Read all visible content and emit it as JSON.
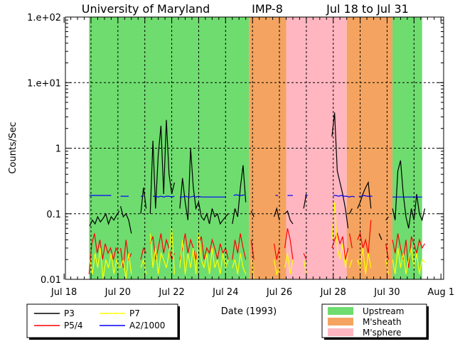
{
  "chart_data": {
    "type": "line",
    "title_parts": [
      "University of Maryland",
      "IMP-8",
      "Jul 18 to Jul 31"
    ],
    "xlabel": "Date (1993)",
    "ylabel": "Counts/Sec",
    "x_units": "days since Jul 18 00:00",
    "xlim": [
      0.05,
      14.1
    ],
    "ylim": [
      0.01,
      100
    ],
    "yscale": "log",
    "y_tick_values": [
      100,
      10,
      1,
      0.1,
      0.01
    ],
    "y_tick_labels": [
      "1.e+02",
      "1.e+01",
      "1",
      "0.1",
      "0.01"
    ],
    "x_tick_days": [
      0,
      2,
      4,
      6,
      8,
      10,
      12,
      14
    ],
    "x_tick_labels": [
      "Jul 18",
      "Jul 20",
      "Jul 22",
      "Jul 24",
      "Jul 26",
      "Jul 28",
      "Jul 30",
      "Aug 1"
    ],
    "grid": {
      "vertical_days": [
        1,
        2,
        3,
        4,
        5,
        6,
        7,
        8,
        9,
        10,
        11,
        12,
        13
      ],
      "horizontal_values": [
        10,
        1,
        0.1
      ],
      "style": "dashed"
    },
    "regions": [
      {
        "name": "Upstream",
        "start": 0.93,
        "end": 6.87
      },
      {
        "name": "M'sheath",
        "start": 6.87,
        "end": 8.25
      },
      {
        "name": "M'sphere",
        "start": 8.25,
        "end": 10.5
      },
      {
        "name": "M'sheath",
        "start": 10.5,
        "end": 12.2
      },
      {
        "name": "Upstream",
        "start": 12.2,
        "end": 13.3
      }
    ],
    "region_legend": [
      {
        "name": "Upstream",
        "color": "#6fdc6f"
      },
      {
        "name": "M'sheath",
        "color": "#f4a460"
      },
      {
        "name": "M'sphere",
        "color": "#ffb6c1"
      }
    ],
    "legend_placement": "bottom-left",
    "series": [
      {
        "name": "P3",
        "color": "#000000",
        "step": 0.1,
        "segments": [
          {
            "start": 0.95,
            "values": [
              0.065,
              0.08,
              0.07,
              0.09,
              0.075,
              0.085,
              0.1,
              0.07,
              0.09,
              0.08,
              0.095,
              0.11
            ]
          },
          {
            "start": 2.1,
            "values": [
              0.13,
              0.09,
              0.1,
              0.08,
              0.05
            ]
          },
          {
            "start": 2.85,
            "values": [
              0.1,
              0.25,
              0.12
            ]
          },
          {
            "start": 3.2,
            "values": [
              0.1,
              1.3,
              0.12,
              0.8,
              2.2,
              0.2,
              2.7,
              0.4,
              0.2,
              0.3
            ]
          },
          {
            "start": 4.3,
            "values": [
              0.12,
              0.35,
              0.15,
              0.08,
              1.0,
              0.25,
              0.12,
              0.15,
              0.09,
              0.08,
              0.1,
              0.07,
              0.12,
              0.09,
              0.1,
              0.07,
              0.08,
              0.09,
              0.1
            ]
          },
          {
            "start": 6.25,
            "values": [
              0.07,
              0.12,
              0.09,
              0.25,
              0.55,
              0.15
            ]
          },
          {
            "start": 6.95,
            "values": [
              0.11,
              0.09
            ]
          },
          {
            "start": 7.8,
            "values": [
              0.09,
              0.12,
              0.08
            ]
          },
          {
            "start": 8.2,
            "values": [
              0.1,
              0.11,
              0.08,
              0.07
            ]
          },
          {
            "start": 8.9,
            "values": [
              0.12,
              0.2
            ]
          },
          {
            "start": 9.95,
            "values": [
              1.5,
              3.5,
              0.45,
              0.3,
              0.2,
              0.12,
              0.06
            ]
          },
          {
            "start": 10.6,
            "values": [
              0.1,
              0.12
            ]
          },
          {
            "start": 10.9,
            "values": [
              0.12,
              0.15,
              0.2,
              0.25,
              0.3,
              0.12
            ]
          },
          {
            "start": 11.7,
            "values": [
              0.05,
              0.04
            ]
          },
          {
            "start": 11.95,
            "values": [
              0.08,
              0.09
            ]
          },
          {
            "start": 12.2,
            "values": [
              0.12,
              0.08,
              0.45,
              0.65,
              0.2,
              0.09,
              0.06,
              0.12,
              0.08,
              0.2,
              0.1,
              0.08,
              0.12
            ]
          }
        ]
      },
      {
        "name": "P5/4",
        "color": "#ff0000",
        "step": 0.1,
        "segments": [
          {
            "start": 0.93,
            "values": [
              0.012,
              0.035,
              0.05,
              0.025,
              0.04,
              0.02,
              0.035,
              0.025,
              0.03,
              0.02,
              0.03,
              0.025
            ]
          },
          {
            "start": 2.1,
            "values": [
              0.03,
              0.015,
              0.04,
              0.02,
              0.025
            ]
          },
          {
            "start": 2.85,
            "values": [
              0.02,
              0.03,
              0.025
            ]
          },
          {
            "start": 3.2,
            "values": [
              0.035,
              0.045,
              0.02,
              0.03,
              0.05,
              0.025,
              0.04,
              0.03,
              0.02,
              0.025
            ]
          },
          {
            "start": 4.3,
            "values": [
              0.02,
              0.03,
              0.05,
              0.025,
              0.04,
              0.03,
              0.02,
              0.035,
              0.045,
              0.02,
              0.03,
              0.025,
              0.04,
              0.03,
              0.02,
              0.035,
              0.025,
              0.03,
              0.02
            ]
          },
          {
            "start": 6.25,
            "values": [
              0.02,
              0.04,
              0.025,
              0.05,
              0.03,
              0.02
            ]
          },
          {
            "start": 6.95,
            "values": [
              0.04,
              0.02
            ]
          },
          {
            "start": 7.8,
            "values": [
              0.035,
              0.02,
              0.03
            ]
          },
          {
            "start": 8.2,
            "values": [
              0.03,
              0.06,
              0.04,
              0.02
            ]
          },
          {
            "start": 8.9,
            "values": [
              0.025,
              0.02
            ]
          },
          {
            "start": 9.95,
            "values": [
              0.03,
              0.04,
              0.05,
              0.035,
              0.045,
              0.02,
              0.03
            ]
          },
          {
            "start": 10.6,
            "values": [
              0.05,
              0.03
            ]
          },
          {
            "start": 10.9,
            "values": [
              0.04,
              0.05,
              0.03,
              0.04,
              0.025,
              0.08
            ]
          },
          {
            "start": 11.95,
            "values": [
              0.035,
              0.02
            ]
          },
          {
            "start": 12.2,
            "values": [
              0.04,
              0.025,
              0.05,
              0.03,
              0.02,
              0.04,
              0.015,
              0.045,
              0.035,
              0.025,
              0.04,
              0.03,
              0.035
            ]
          }
        ]
      },
      {
        "name": "P7",
        "color": "#ffff00",
        "step": 0.1,
        "segments": [
          {
            "start": 0.95,
            "values": [
              0.02,
              0.012,
              0.025,
              0.015,
              0.03,
              0.01,
              0.02,
              0.015,
              0.025,
              0.012,
              0.02,
              0.015
            ]
          },
          {
            "start": 2.1,
            "values": [
              0.015,
              0.02,
              0.01,
              0.025,
              0.012
            ]
          },
          {
            "start": 2.85,
            "values": [
              0.015,
              0.02,
              0.012
            ]
          },
          {
            "start": 3.2,
            "values": [
              0.05,
              0.015,
              0.03,
              0.012,
              0.025,
              0.02,
              0.015,
              0.025,
              0.06,
              0.012
            ]
          },
          {
            "start": 4.3,
            "values": [
              0.015,
              0.04,
              0.012,
              0.025,
              0.015,
              0.03,
              0.012,
              0.05,
              0.02,
              0.015,
              0.025,
              0.012,
              0.03,
              0.015,
              0.02,
              0.012,
              0.025,
              0.015,
              0.02
            ]
          },
          {
            "start": 6.25,
            "values": [
              0.015,
              0.02,
              0.012,
              0.025,
              0.015,
              0.012
            ]
          },
          {
            "start": 6.95,
            "values": [
              0.02,
              0.01
            ]
          },
          {
            "start": 7.8,
            "values": [
              0.02,
              0.012,
              0.015
            ]
          },
          {
            "start": 8.2,
            "values": [
              0.015,
              0.025,
              0.012,
              0.02
            ]
          },
          {
            "start": 8.9,
            "values": [
              0.02,
              0.012
            ]
          },
          {
            "start": 9.95,
            "values": [
              0.04,
              0.15,
              0.03,
              0.02,
              0.035,
              0.015,
              0.025
            ]
          },
          {
            "start": 10.6,
            "values": [
              0.015,
              0.02
            ]
          },
          {
            "start": 10.9,
            "values": [
              0.02,
              0.015,
              0.03,
              0.012,
              0.025,
              0.015
            ]
          },
          {
            "start": 11.95,
            "values": [
              0.02,
              0.012
            ]
          },
          {
            "start": 12.2,
            "values": [
              0.02,
              0.012,
              0.03,
              0.015,
              0.025,
              0.012,
              0.02,
              0.03,
              0.015,
              0.025,
              0.012,
              0.02,
              0.018
            ]
          }
        ]
      },
      {
        "name": "A2/1000",
        "color": "#0000ff",
        "step": 0.1,
        "segments": [
          {
            "start": 0.95,
            "values": [
              0.19,
              0.19,
              0.19,
              0.19,
              0.19,
              0.19,
              0.19,
              0.19,
              0.19
            ]
          },
          {
            "start": 2.1,
            "values": [
              0.185,
              0.185,
              0.185,
              0.185
            ]
          },
          {
            "start": 2.85,
            "values": [
              0.185,
              0.185
            ]
          },
          {
            "start": 3.3,
            "values": [
              0.185,
              0.185,
              0.18,
              0.185,
              0.18,
              0.185,
              0.185,
              0.18,
              0.185
            ]
          },
          {
            "start": 4.3,
            "values": [
              0.18,
              0.18,
              0.185,
              0.18,
              0.18,
              0.185,
              0.18,
              0.185,
              0.18,
              0.18,
              0.18,
              0.18,
              0.18,
              0.18,
              0.18,
              0.18,
              0.18,
              0.18
            ]
          },
          {
            "start": 6.3,
            "values": [
              0.19,
              0.195,
              0.19,
              0.19,
              0.195
            ]
          },
          {
            "start": 7.85,
            "values": [
              0.19,
              0.19
            ]
          },
          {
            "start": 8.3,
            "values": [
              0.19,
              0.19,
              0.19
            ]
          },
          {
            "start": 8.95,
            "values": [
              0.19,
              0.19
            ]
          },
          {
            "start": 10.0,
            "values": [
              0.19,
              0.19,
              0.185,
              0.19,
              0.185,
              0.185,
              0.18,
              0.185,
              0.18
            ]
          },
          {
            "start": 10.95,
            "values": [
              0.185,
              0.185,
              0.19,
              0.185,
              0.185,
              0.185
            ]
          },
          {
            "start": 12.2,
            "values": [
              0.18,
              0.18,
              0.18,
              0.18,
              0.18,
              0.18,
              0.18,
              0.18,
              0.18,
              0.18,
              0.18,
              0.18
            ]
          }
        ]
      }
    ]
  }
}
